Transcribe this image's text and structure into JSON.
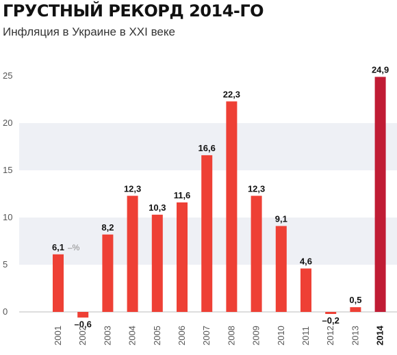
{
  "header": {
    "title": "ГРУСТНЫЙ РЕКОРД 2014-ГО",
    "subtitle": "Инфляция в Украине в XXI веке"
  },
  "chart_data": {
    "type": "bar",
    "categories": [
      "2001",
      "2002",
      "2003",
      "2004",
      "2005",
      "2006",
      "2007",
      "2008",
      "2009",
      "2010",
      "2011",
      "2012",
      "2013",
      "2014"
    ],
    "values": [
      6.1,
      -0.6,
      8.2,
      12.3,
      10.3,
      11.6,
      16.6,
      22.3,
      12.3,
      9.1,
      4.6,
      -0.2,
      0.5,
      24.9
    ],
    "data_labels": [
      "6,1",
      "–0,6",
      "8,2",
      "12,3",
      "10,3",
      "11,6",
      "16,6",
      "22,3",
      "12,3",
      "9,1",
      "4,6",
      "–0,2",
      "0,5",
      "24,9"
    ],
    "unit_annotation": "–%",
    "highlight_category": "2014",
    "ylim": [
      0,
      25
    ],
    "yticks": [
      0,
      5,
      10,
      15,
      20,
      25
    ],
    "ytick_labels": [
      "0",
      "5",
      "10",
      "15",
      "20",
      "25"
    ],
    "grid": "alternating horizontal bands",
    "colors": {
      "bar": "#ee4035",
      "highlight": "#c01c34",
      "band": "#eef0f5",
      "text": "#111111",
      "tick": "#555555"
    }
  }
}
